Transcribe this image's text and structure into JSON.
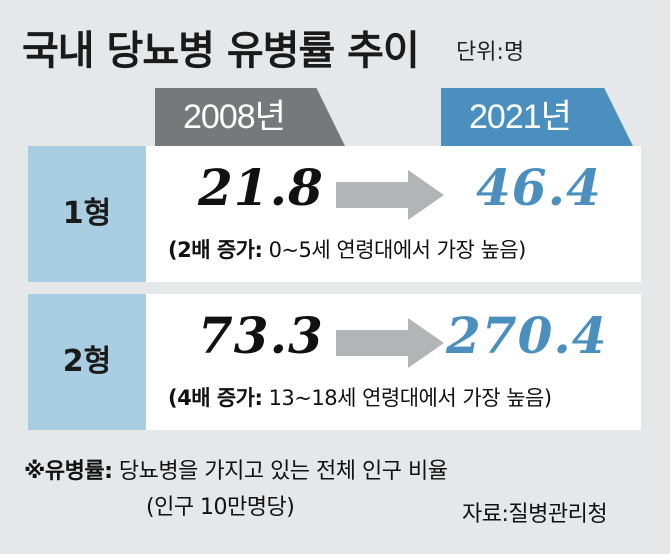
{
  "title": "국내 당뇨병 유병률 추이",
  "unit": "단위:명",
  "years": {
    "start": "2008년",
    "end": "2021년"
  },
  "rows": [
    {
      "label": "1형",
      "before": "21.8",
      "after": "46.4",
      "note_bold": "(2배 증가:",
      "note_rest": " 0~5세 연령대에서 가장 높음)"
    },
    {
      "label": "2형",
      "before": "73.3",
      "after": "270.4",
      "note_bold": "(4배 증가:",
      "note_rest": " 13~18세 연령대에서 가장 높음)"
    }
  ],
  "footnote": {
    "term": "※유병률:",
    "definition": " 당뇨병을 가지고 있는 전체 인구 비율",
    "line2": "(인구 10만명당)"
  },
  "source": "자료:질병관리청",
  "colors": {
    "accent": "#4a8fbe",
    "label_bg": "#a9cde1",
    "gray": "#77787b",
    "arrow": "#b3b4b6"
  }
}
